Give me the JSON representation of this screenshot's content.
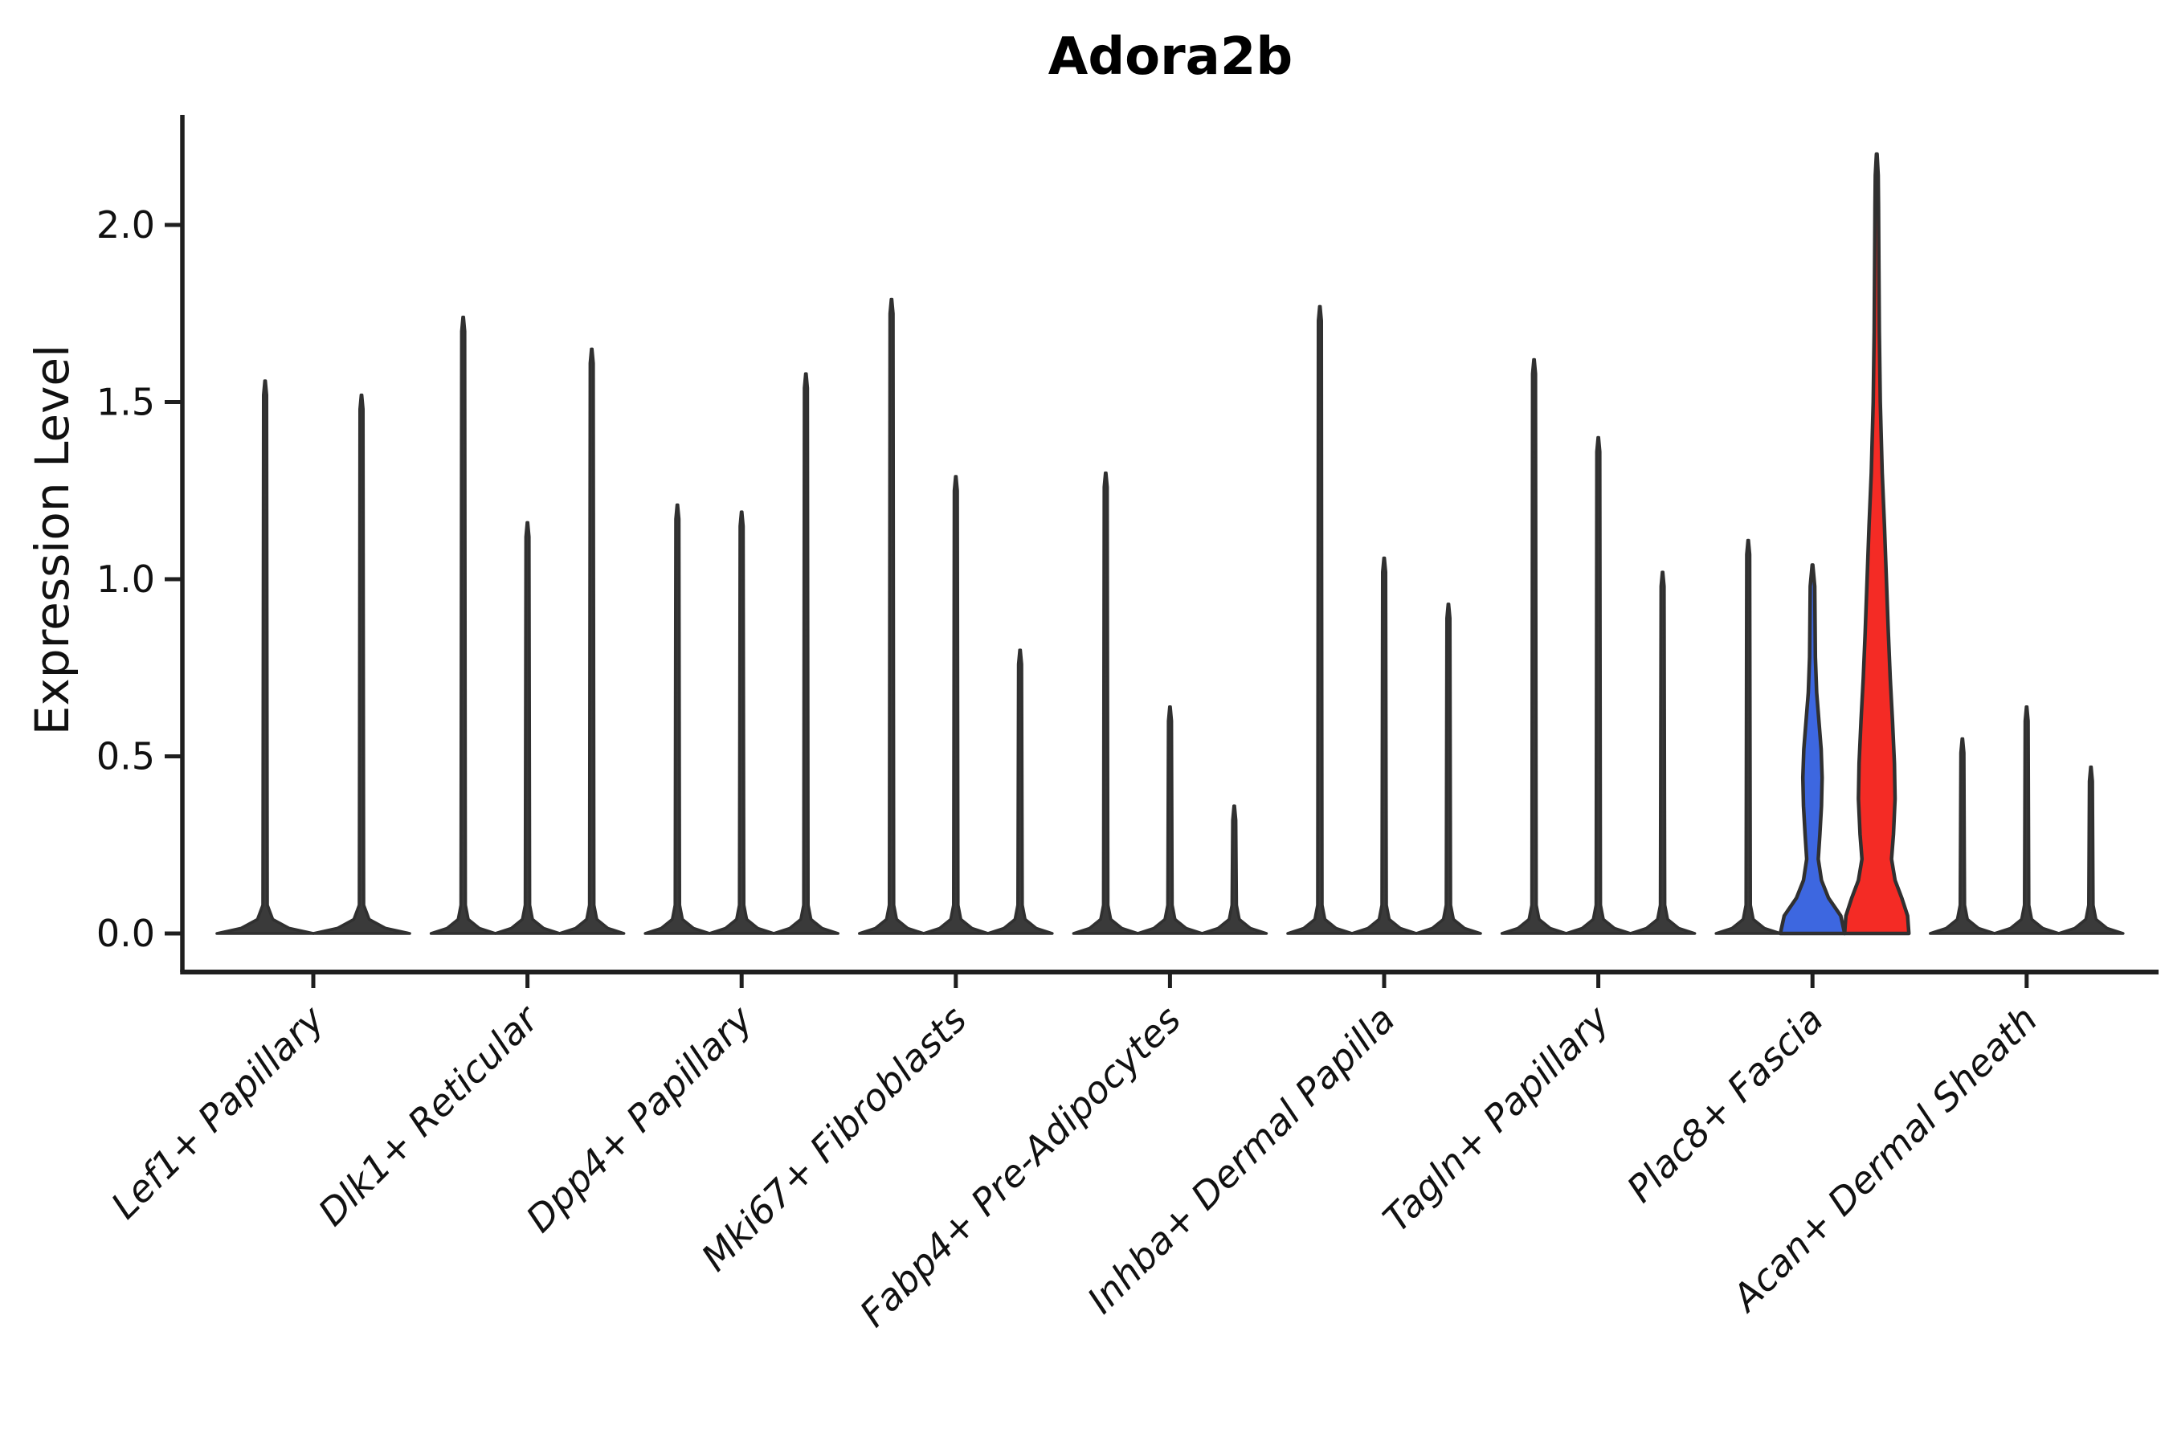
{
  "chart_data": {
    "type": "violin",
    "title": "Adora2b",
    "ylabel": "Expression Level",
    "xlabel": "",
    "ylim": [
      -0.11,
      2.31
    ],
    "yticks": [
      0,
      0.5,
      1,
      1.5,
      2
    ],
    "ytick_labels": [
      "0.0",
      "0.5",
      "1.0",
      "1.5",
      "2.0"
    ],
    "grid": false,
    "legend": "none",
    "categories": [
      "Lef1+ Papillary",
      "Dlk1+ Reticular",
      "Dpp4+ Papillary",
      "Mki67+ Fibroblasts",
      "Fabp4+ Pre-Adipocytes",
      "Inhba+ Dermal Papilla",
      "Tagln+ Papillary",
      "Plac8+ Fascia",
      "Acan+ Dermal Sheath"
    ],
    "groups": [
      {
        "category": "Lef1+ Papillary",
        "violins": [
          {
            "max": 1.56,
            "style": "spike"
          },
          {
            "max": 1.52,
            "style": "spike"
          }
        ]
      },
      {
        "category": "Dlk1+ Reticular",
        "violins": [
          {
            "max": 1.74,
            "style": "spike"
          },
          {
            "max": 1.16,
            "style": "spike"
          },
          {
            "max": 1.65,
            "style": "spike"
          }
        ]
      },
      {
        "category": "Dpp4+ Papillary",
        "violins": [
          {
            "max": 1.21,
            "style": "spike"
          },
          {
            "max": 1.19,
            "style": "spike"
          },
          {
            "max": 1.58,
            "style": "spike"
          }
        ]
      },
      {
        "category": "Mki67+ Fibroblasts",
        "violins": [
          {
            "max": 1.79,
            "style": "spike"
          },
          {
            "max": 1.29,
            "style": "spike"
          },
          {
            "max": 0.8,
            "style": "spike"
          }
        ]
      },
      {
        "category": "Fabp4+ Pre-Adipocytes",
        "violins": [
          {
            "max": 1.3,
            "style": "spike"
          },
          {
            "max": 0.64,
            "style": "spike"
          },
          {
            "max": 0.36,
            "style": "spike"
          }
        ]
      },
      {
        "category": "Inhba+ Dermal Papilla",
        "violins": [
          {
            "max": 1.77,
            "style": "spike"
          },
          {
            "max": 1.06,
            "style": "spike"
          },
          {
            "max": 0.93,
            "style": "spike"
          }
        ]
      },
      {
        "category": "Tagln+ Papillary",
        "violins": [
          {
            "max": 1.62,
            "style": "spike"
          },
          {
            "max": 1.4,
            "style": "spike"
          },
          {
            "max": 1.02,
            "style": "spike"
          }
        ]
      },
      {
        "category": "Plac8+ Fascia",
        "violins": [
          {
            "max": 1.11,
            "style": "spike"
          },
          {
            "max": 1.04,
            "style": "filled",
            "color": "#3D67E0",
            "profile": [
              [
                0,
                1.0
              ],
              [
                0.05,
                0.88
              ],
              [
                0.1,
                0.5
              ],
              [
                0.15,
                0.28
              ],
              [
                0.21,
                0.18
              ],
              [
                0.28,
                0.23
              ],
              [
                0.36,
                0.28
              ],
              [
                0.44,
                0.3
              ],
              [
                0.52,
                0.27
              ],
              [
                0.6,
                0.2
              ],
              [
                0.68,
                0.13
              ],
              [
                0.78,
                0.09
              ],
              [
                0.88,
                0.08
              ],
              [
                0.98,
                0.07
              ],
              [
                1.04,
                0.01
              ]
            ]
          },
          {
            "max": 2.2,
            "style": "filled",
            "color": "#F42B25",
            "profile": [
              [
                0,
                1.0
              ],
              [
                0.05,
                0.96
              ],
              [
                0.1,
                0.78
              ],
              [
                0.15,
                0.57
              ],
              [
                0.21,
                0.46
              ],
              [
                0.28,
                0.52
              ],
              [
                0.38,
                0.57
              ],
              [
                0.48,
                0.55
              ],
              [
                0.6,
                0.49
              ],
              [
                0.72,
                0.42
              ],
              [
                0.85,
                0.36
              ],
              [
                1.0,
                0.3
              ],
              [
                1.15,
                0.24
              ],
              [
                1.3,
                0.17
              ],
              [
                1.5,
                0.11
              ],
              [
                1.7,
                0.08
              ],
              [
                1.9,
                0.065
              ],
              [
                2.05,
                0.055
              ],
              [
                2.14,
                0.045
              ],
              [
                2.2,
                0.01
              ]
            ]
          }
        ]
      },
      {
        "category": "Acan+ Dermal Sheath",
        "violins": [
          {
            "max": 0.55,
            "style": "spike"
          },
          {
            "max": 0.64,
            "style": "spike"
          },
          {
            "max": 0.47,
            "style": "spike"
          }
        ]
      }
    ],
    "colors": {
      "outline": "#303030",
      "spike_fill": "#3a3a3a",
      "axis": "#1f1f1f",
      "highlight_blue": "#3D67E0",
      "highlight_red": "#F42B25",
      "background": "#ffffff"
    }
  }
}
